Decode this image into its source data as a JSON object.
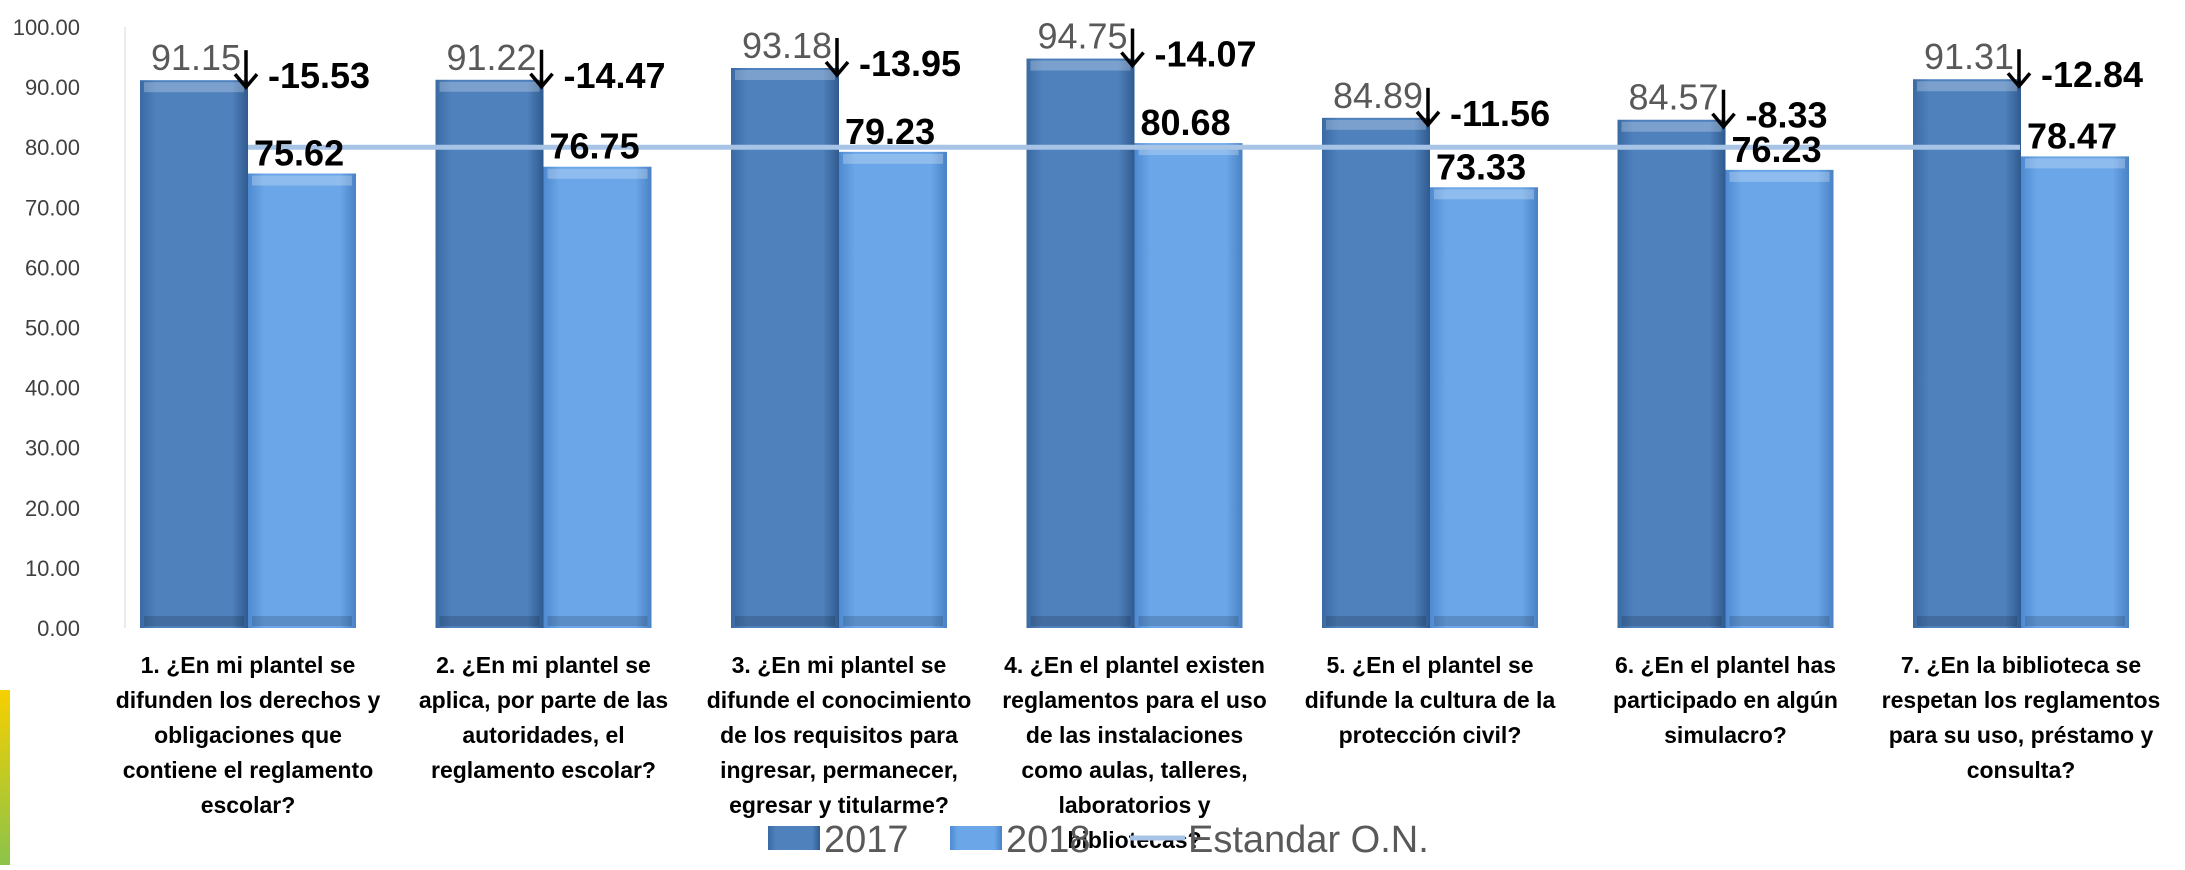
{
  "chart_data": {
    "type": "bar",
    "title": "",
    "xlabel": "",
    "ylabel": "",
    "ylim": [
      0,
      100
    ],
    "yticks": [
      "0.00",
      "10.00",
      "20.00",
      "30.00",
      "40.00",
      "50.00",
      "60.00",
      "70.00",
      "80.00",
      "90.00",
      "100.00"
    ],
    "grid": false,
    "legend_position": "bottom",
    "categories": [
      "1. ¿En mi plantel se difunden los derechos y obligaciones que contiene el reglamento escolar?",
      "2. ¿En mi plantel se aplica, por parte de las autoridades, el reglamento escolar?",
      "3. ¿En mi plantel se difunde el conocimiento de los requisitos para ingresar, permanecer, egresar y titularme?",
      "4. ¿En el plantel existen reglamentos para el uso de las instalaciones como aulas, talleres, laboratorios y bibliotecas?",
      "5. ¿En el plantel se difunde la cultura de la protección civil?",
      "6. ¿En el plantel has participado en algún simulacro?",
      "7. ¿En la biblioteca se respetan los reglamentos para su uso, préstamo y consulta?"
    ],
    "category_lines": [
      [
        "1. ¿En mi plantel se",
        "difunden los derechos y",
        "obligaciones que",
        "contiene el reglamento",
        "escolar?"
      ],
      [
        "2. ¿En mi plantel se",
        "aplica, por parte de las",
        "autoridades, el",
        "reglamento escolar?"
      ],
      [
        "3. ¿En mi plantel se",
        "difunde el conocimiento",
        "de los requisitos para",
        "ingresar, permanecer,",
        "egresar y titularme?"
      ],
      [
        "4. ¿En el plantel existen",
        "reglamentos para el uso",
        "de las instalaciones",
        "como aulas, talleres,",
        "laboratorios y",
        "bibliotecas?"
      ],
      [
        "5. ¿En el plantel se",
        "difunde la cultura de la",
        "protección civil?"
      ],
      [
        "6. ¿En el plantel has",
        "participado en algún",
        "simulacro?"
      ],
      [
        "7. ¿En la biblioteca se",
        "respetan los reglamentos",
        "para su uso, préstamo y",
        "consulta?"
      ]
    ],
    "series": [
      {
        "name": "2017",
        "values": [
          91.15,
          91.22,
          93.18,
          94.75,
          84.89,
          84.57,
          91.31
        ],
        "color": "#4f81bd"
      },
      {
        "name": "2018",
        "values": [
          75.62,
          76.75,
          79.23,
          80.68,
          73.33,
          76.23,
          78.47
        ],
        "color": "#6fa8e8"
      }
    ],
    "value_labels_2017": [
      "91.15",
      "91.22",
      "93.18",
      "94.75",
      "84.89",
      "84.57",
      "91.31"
    ],
    "value_labels_2018": [
      "75.62",
      "76.75",
      "79.23",
      "80.68",
      "73.33",
      "76.23",
      "78.47"
    ],
    "differences": [
      "-15.53",
      "-14.47",
      "-13.95",
      "-14.07",
      "-11.56",
      "-8.33",
      "-12.84"
    ],
    "difference_icon": "arrow-down-icon",
    "reference_line": {
      "name": "Estandar O.N.",
      "value": 80,
      "color": "#a7c3e6"
    }
  }
}
